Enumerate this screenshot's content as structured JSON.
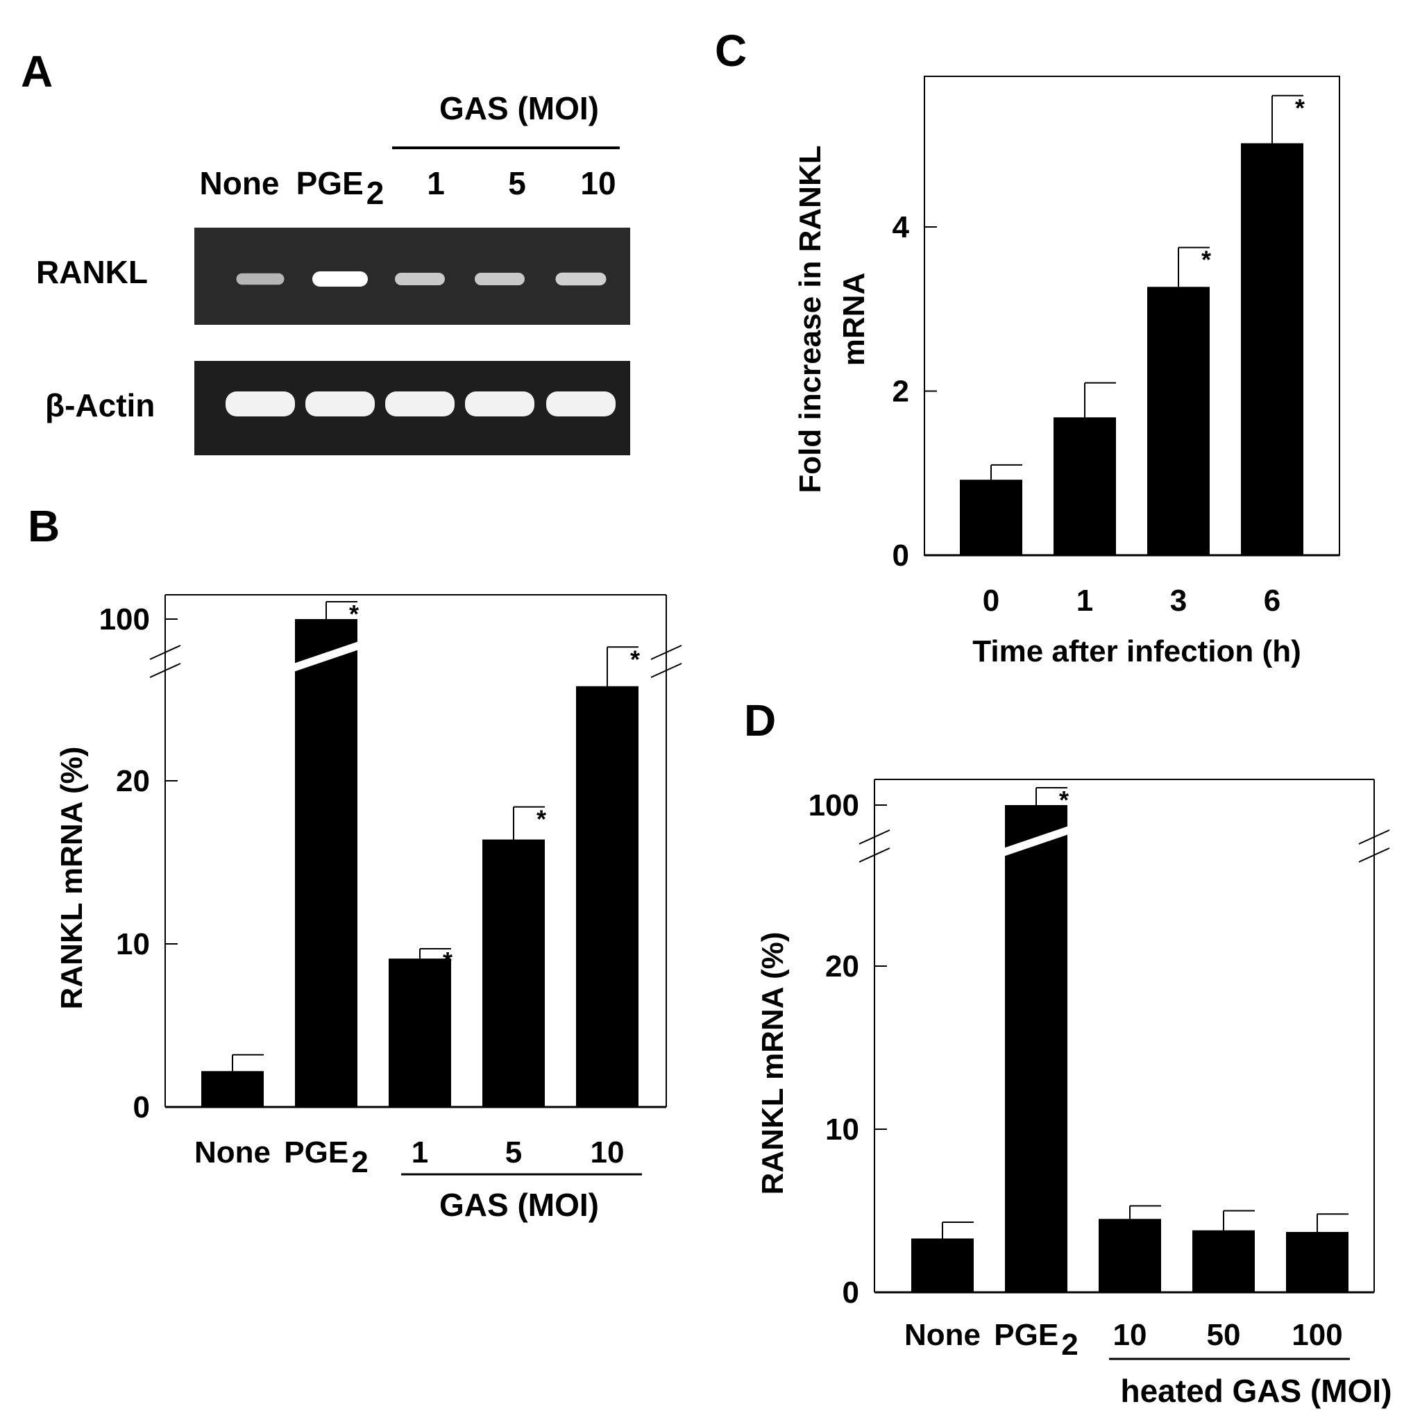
{
  "panels": {
    "A": {
      "label": "A",
      "group_label": "GAS (MOI)",
      "lanes": [
        "None",
        "PGE",
        "1",
        "5",
        "10"
      ],
      "pge_sub": "2",
      "rows": [
        {
          "name": "RANKL",
          "band_intensity": [
            0.45,
            1.0,
            0.6,
            0.6,
            0.65
          ]
        },
        {
          "name": "β-Actin",
          "band_intensity": [
            1.0,
            1.0,
            1.0,
            1.0,
            1.0
          ]
        }
      ]
    },
    "B": {
      "label": "B",
      "pge_sub": "2"
    },
    "C": {
      "label": "C"
    },
    "D": {
      "label": "D",
      "pge_sub": "2"
    }
  },
  "chart_data": [
    {
      "panel": "B",
      "type": "bar",
      "categories": [
        "None",
        "PGE2",
        "1",
        "5",
        "10"
      ],
      "values": [
        2.2,
        100,
        9.1,
        16.4,
        25.8
      ],
      "errors": [
        1.0,
        2.0,
        0.6,
        2.0,
        2.4
      ],
      "significant": [
        false,
        true,
        true,
        true,
        true
      ],
      "axis_break": {
        "from": 27,
        "to": 100,
        "label_value": 100
      },
      "ylabel": "RANKL mRNA (%)",
      "yticks": [
        0,
        10,
        20,
        100
      ],
      "ylim": [
        0,
        100
      ],
      "group_label": "GAS (MOI)"
    },
    {
      "panel": "C",
      "type": "bar",
      "categories": [
        "0",
        "1",
        "3",
        "6"
      ],
      "values": [
        0.92,
        1.68,
        3.27,
        5.02
      ],
      "errors": [
        0.18,
        0.42,
        0.48,
        0.58
      ],
      "significant": [
        false,
        false,
        true,
        true
      ],
      "ylabel": "Fold increase in RANKL mRNA",
      "xlabel": "Time after infection (h)",
      "yticks": [
        0,
        2,
        4
      ],
      "ylim": [
        0,
        5.8
      ]
    },
    {
      "panel": "D",
      "type": "bar",
      "categories": [
        "None",
        "PGE2",
        "10",
        "50",
        "100"
      ],
      "values": [
        3.3,
        100,
        4.5,
        3.8,
        3.7
      ],
      "errors": [
        1.0,
        2.0,
        0.8,
        1.2,
        1.1
      ],
      "significant": [
        false,
        true,
        false,
        false,
        false
      ],
      "axis_break": {
        "from": 27,
        "to": 100,
        "label_value": 100
      },
      "ylabel": "RANKL mRNA (%)",
      "yticks": [
        0,
        10,
        20,
        100
      ],
      "ylim": [
        0,
        100
      ],
      "group_label": "heated GAS (MOI)"
    }
  ]
}
